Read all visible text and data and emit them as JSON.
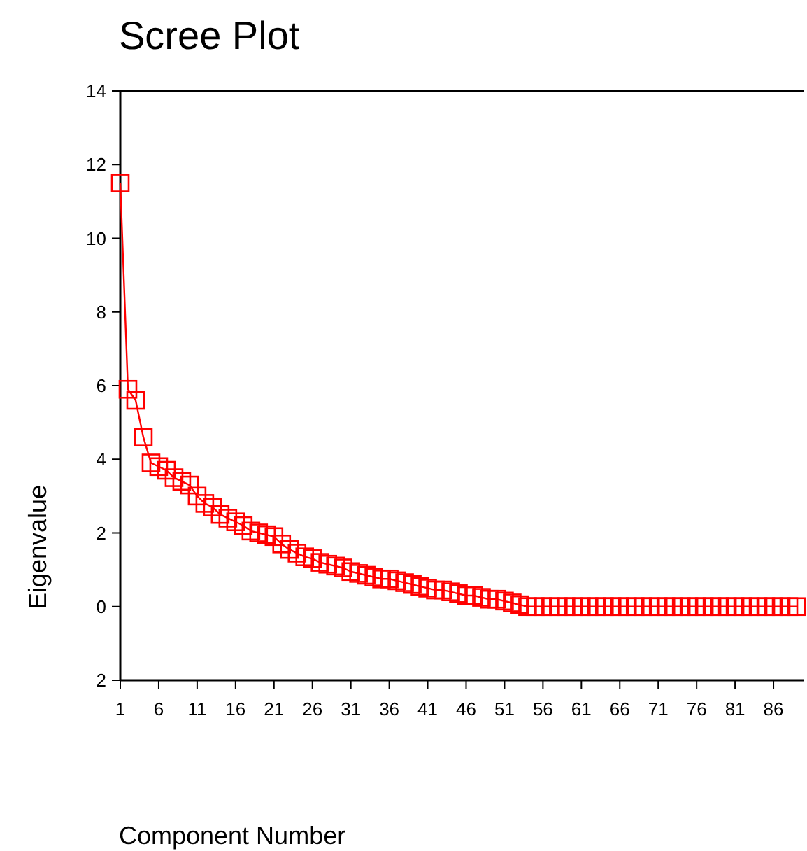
{
  "chart_data": {
    "type": "line",
    "title": "Scree Plot",
    "xlabel": "Component Number",
    "ylabel": "Eigenvalue",
    "x": [
      1,
      2,
      3,
      4,
      5,
      6,
      7,
      8,
      9,
      10,
      11,
      12,
      13,
      14,
      15,
      16,
      17,
      18,
      19,
      20,
      21,
      22,
      23,
      24,
      25,
      26,
      27,
      28,
      29,
      30,
      31,
      32,
      33,
      34,
      35,
      36,
      37,
      38,
      39,
      40,
      41,
      42,
      43,
      44,
      45,
      46,
      47,
      48,
      49,
      50,
      51,
      52,
      53,
      54,
      55,
      56,
      57,
      58,
      59,
      60,
      61,
      62,
      63,
      64,
      65,
      66,
      67,
      68,
      69,
      70,
      71,
      72,
      73,
      74,
      75,
      76,
      77,
      78,
      79,
      80,
      81,
      82,
      83,
      84,
      85,
      86,
      87,
      88,
      89
    ],
    "series": [
      {
        "color": "#ff0000",
        "values": [
          11.5,
          5.9,
          5.6,
          4.6,
          3.9,
          3.8,
          3.7,
          3.5,
          3.4,
          3.3,
          3.0,
          2.8,
          2.7,
          2.5,
          2.4,
          2.3,
          2.2,
          2.05,
          2.0,
          1.95,
          1.9,
          1.7,
          1.55,
          1.45,
          1.35,
          1.3,
          1.2,
          1.15,
          1.1,
          1.05,
          0.95,
          0.9,
          0.85,
          0.8,
          0.75,
          0.75,
          0.7,
          0.65,
          0.6,
          0.55,
          0.5,
          0.45,
          0.45,
          0.4,
          0.35,
          0.3,
          0.3,
          0.25,
          0.2,
          0.2,
          0.15,
          0.1,
          0.05,
          0,
          0,
          0,
          0,
          0,
          0,
          0,
          0,
          0,
          0,
          0,
          0,
          0,
          0,
          0,
          0,
          0,
          0,
          0,
          0,
          0,
          0,
          0,
          0,
          0,
          0,
          0,
          0,
          0,
          0,
          0,
          0,
          0,
          0,
          0,
          0
        ]
      }
    ],
    "xlim": [
      1,
      90
    ],
    "xticks": [
      1,
      6,
      11,
      16,
      21,
      26,
      31,
      36,
      41,
      46,
      51,
      56,
      61,
      66,
      71,
      76,
      81,
      86
    ],
    "ylim": [
      -2,
      14
    ],
    "yticks": [
      {
        "value": -2,
        "label": "2"
      },
      0,
      2,
      4,
      6,
      8,
      10,
      12,
      14
    ],
    "marker": "square",
    "line_style": "solid",
    "grid": false
  }
}
